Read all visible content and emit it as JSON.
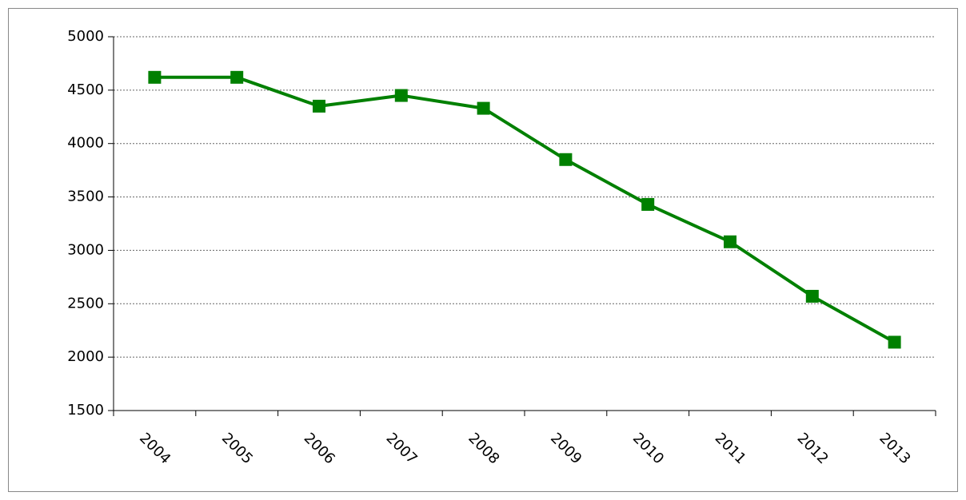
{
  "chart_data": {
    "type": "line",
    "categories": [
      "2004",
      "2005",
      "2006",
      "2007",
      "2008",
      "2009",
      "2010",
      "2011",
      "2012",
      "2013"
    ],
    "series": [
      {
        "color": "#008000",
        "values": [
          4620,
          4620,
          4350,
          4450,
          4330,
          3850,
          3430,
          3080,
          2570,
          2140
        ]
      }
    ],
    "ylim": [
      1500,
      5000
    ],
    "yticks": [
      1500,
      2000,
      2500,
      3000,
      3500,
      4000,
      4500,
      5000
    ],
    "grid": true
  }
}
